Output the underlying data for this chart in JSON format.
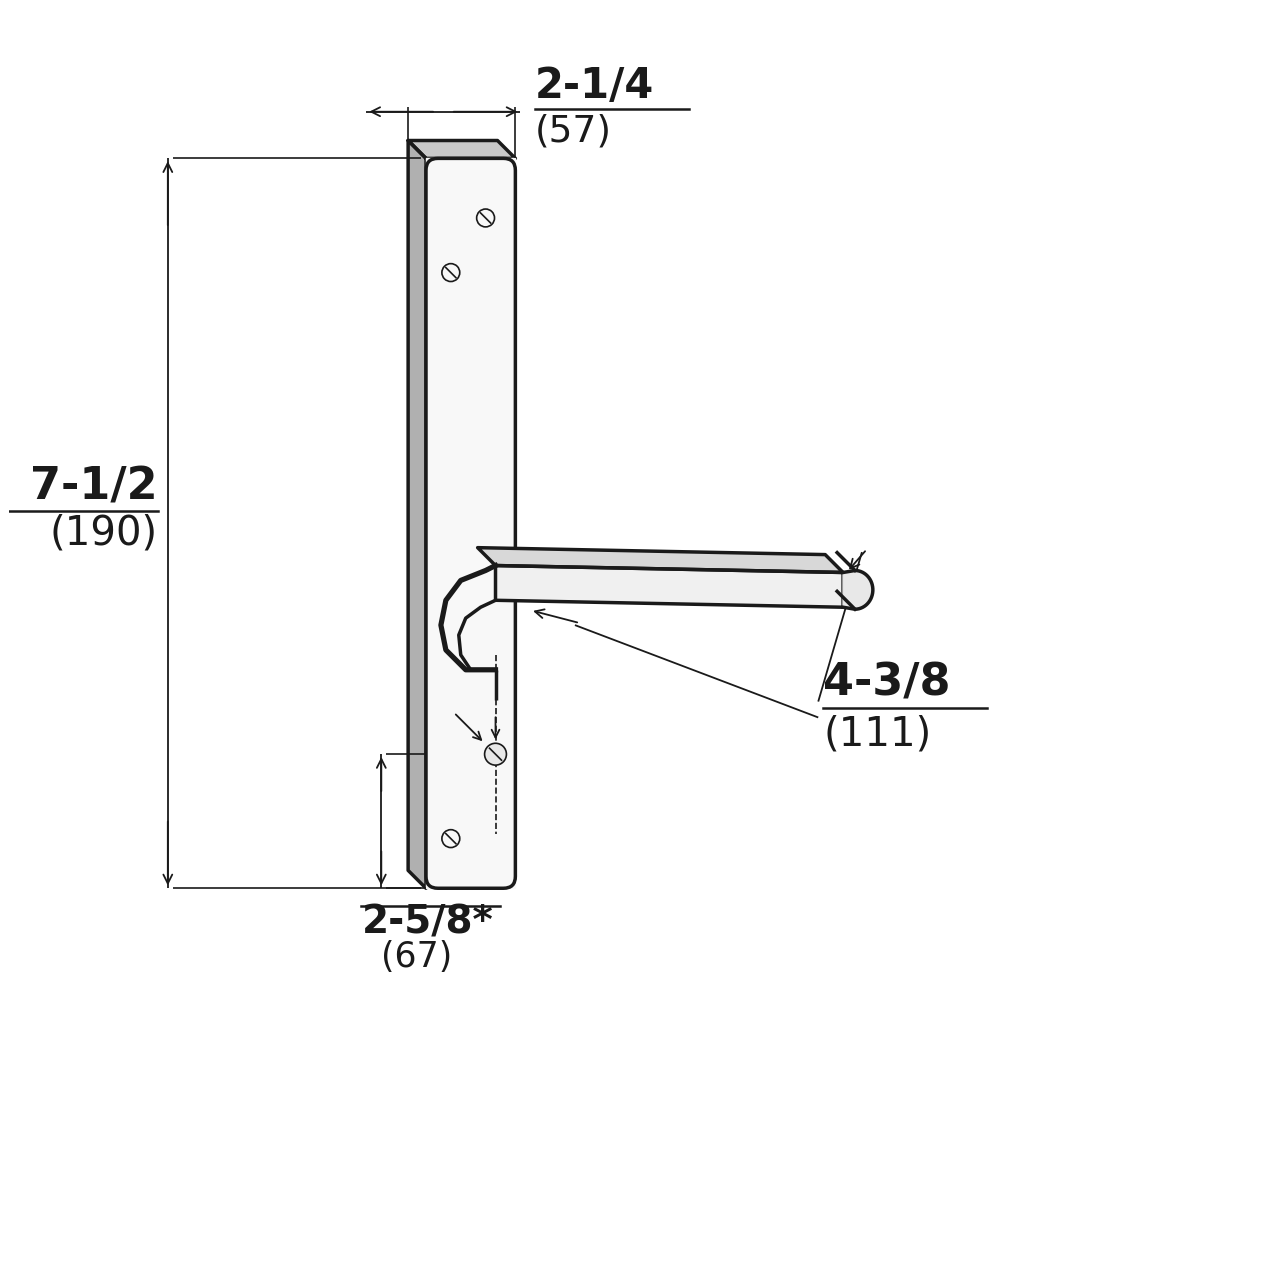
{
  "bg_color": "#ffffff",
  "line_color": "#1a1a1a",
  "dim_color": "#1a1a1a",
  "lw_main": 2.5,
  "lw_thin": 1.2,
  "lw_dim": 1.3,
  "dim_2_1_4_main": "2-1/4",
  "dim_2_1_4_sub": "(57)",
  "dim_7_1_2_main": "7-1/2",
  "dim_7_1_2_sub": "(190)",
  "dim_4_3_8_main": "4-3/8",
  "dim_4_3_8_sub": "(111)",
  "dim_2_5_8_main": "2-5/8*",
  "dim_2_5_8_sub": "(67)",
  "font_size_main": 30,
  "font_size_sub": 27
}
